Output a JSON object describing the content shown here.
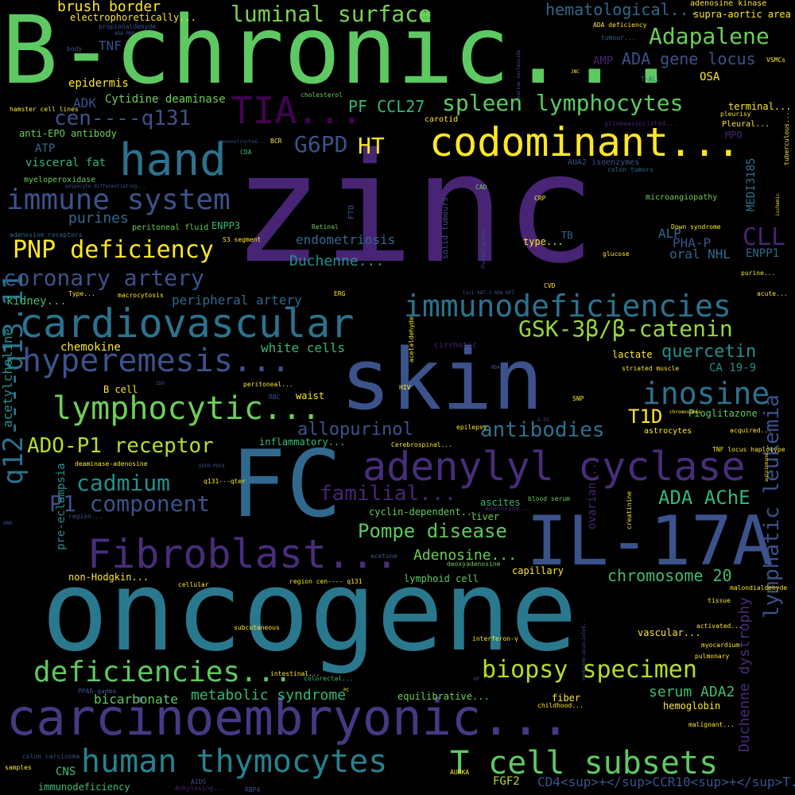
{
  "cloud": {
    "words": [
      {
        "text": "zinc",
        "color": "#482475"
      },
      {
        "text": "oncogene",
        "color": "#2a788e"
      },
      {
        "text": "B-chronic...",
        "color": "#5ec962"
      },
      {
        "text": "FC",
        "color": "#31688e"
      },
      {
        "text": "skin",
        "color": "#3b528b"
      },
      {
        "text": "IL-17A",
        "color": "#3b528b"
      },
      {
        "text": "carcinoembryonic...",
        "color": "#443a83"
      },
      {
        "text": "codominant...",
        "color": "#fde725"
      },
      {
        "text": "Fibroblast...",
        "color": "#472d7b"
      },
      {
        "text": "adenylyl cyclase",
        "color": "#472d7b"
      },
      {
        "text": "cardiovascular",
        "color": "#2c728e"
      },
      {
        "text": "q12----q13.11",
        "color": "#2c728e"
      },
      {
        "text": "TIA...",
        "color": "#440154"
      },
      {
        "text": "hand",
        "color": "#2c728e"
      },
      {
        "text": "immunodeficiencies",
        "color": "#2c728e"
      },
      {
        "text": "hyperemesis...",
        "color": "#3b528b"
      },
      {
        "text": "human thymocytes",
        "color": "#26828e"
      },
      {
        "text": "T cell subsets",
        "color": "#5ec962"
      },
      {
        "text": "lymphocytic...",
        "color": "#6ece58"
      },
      {
        "text": "deficiencies...",
        "color": "#5ec962"
      },
      {
        "text": "inosine",
        "color": "#2c728e"
      },
      {
        "text": "GSK-3β/β-catenin",
        "color": "#95d840"
      },
      {
        "text": "biopsy specimen",
        "color": "#b5de2b"
      },
      {
        "text": "immune system",
        "color": "#3b528b"
      },
      {
        "text": "luminal surface",
        "color": "#7ad151"
      },
      {
        "text": "spleen lymphocytes",
        "color": "#5ec962"
      },
      {
        "text": "PNP deficiency",
        "color": "#fde725"
      },
      {
        "text": "Adapalene",
        "color": "#6ece58"
      },
      {
        "text": "coronary artery",
        "color": "#3b528b"
      },
      {
        "text": "ADO-P1 receptor",
        "color": "#b5de2b"
      },
      {
        "text": "lymphatic leukemia",
        "color": "#3b528b"
      },
      {
        "text": "antibodies",
        "color": "#2c728e"
      },
      {
        "text": "cadmium",
        "color": "#21918c"
      },
      {
        "text": "P1 component",
        "color": "#3b528b"
      },
      {
        "text": "Pompe disease",
        "color": "#5ec962"
      },
      {
        "text": "chromosome 20",
        "color": "#3fbc73"
      },
      {
        "text": "Duchenne dystrophy",
        "color": "#472d7b"
      },
      {
        "text": "metabolic syndrome",
        "color": "#35b779"
      },
      {
        "text": "bicarbonate",
        "color": "#5ec962"
      },
      {
        "text": "familial...",
        "color": "#482475"
      },
      {
        "text": "allopurinol",
        "color": "#3b528b"
      },
      {
        "text": "quercetin",
        "color": "#21918c"
      },
      {
        "text": "ADA AChE",
        "color": "#35b779"
      },
      {
        "text": "serum ADA2",
        "color": "#3fbc73"
      },
      {
        "text": "T1D",
        "color": "#fde725"
      },
      {
        "text": "CLL",
        "color": "#482475"
      },
      {
        "text": "G6PD",
        "color": "#3b528b"
      },
      {
        "text": "HT",
        "color": "#fde725"
      },
      {
        "text": "PF CCL27",
        "color": "#35b779"
      },
      {
        "text": "cen----q131",
        "color": "#3b528b"
      },
      {
        "text": "ADA gene locus",
        "color": "#3b528b"
      },
      {
        "text": "hematological...",
        "color": "#31688e"
      },
      {
        "text": "Adenosine...",
        "color": "#6ece58"
      },
      {
        "text": "brush border",
        "color": "#fde725"
      },
      {
        "text": "CD4<sup>+</sup>CCR10<sup>+</sup>T...",
        "color": "#3b528b"
      },
      {
        "text": "endometriosis",
        "color": "#31688e"
      },
      {
        "text": "Duchenne...",
        "color": "#21918c"
      },
      {
        "text": "peripheral artery",
        "color": "#31688e"
      },
      {
        "text": "white cells",
        "color": "#35b779"
      },
      {
        "text": "purines",
        "color": "#31688e"
      },
      {
        "text": "ALP",
        "color": "#31688e"
      },
      {
        "text": "oral NHL",
        "color": "#31688e"
      },
      {
        "text": "PHA-P",
        "color": "#3b528b"
      },
      {
        "text": "MEDI3185",
        "color": "#2c728e"
      },
      {
        "text": "ENPP1",
        "color": "#31688e"
      },
      {
        "text": "CA 19-9",
        "color": "#21918c"
      },
      {
        "text": "Pioglitazone",
        "color": "#5ec962"
      },
      {
        "text": "acetylcholine",
        "color": "#21918c"
      },
      {
        "text": "pre-eclampsia",
        "color": "#21918c"
      },
      {
        "text": "ovarian...",
        "color": "#482475"
      },
      {
        "text": "Cytidine deaminase",
        "color": "#6ece58"
      },
      {
        "text": "visceral fat",
        "color": "#35b779"
      },
      {
        "text": "ATP",
        "color": "#31688e"
      },
      {
        "text": "kidney...",
        "color": "#3fbc73"
      },
      {
        "text": "chemokine",
        "color": "#fde725"
      },
      {
        "text": "epidermis",
        "color": "#fde725"
      },
      {
        "text": "TNF",
        "color": "#3b528b"
      },
      {
        "text": "ADK",
        "color": "#3b528b"
      },
      {
        "text": "AMP",
        "color": "#482475"
      },
      {
        "text": "CNS",
        "color": "#3fbc73"
      },
      {
        "text": "FGF2",
        "color": "#b5de2b"
      },
      {
        "text": "capillary",
        "color": "#fde725"
      },
      {
        "text": "liver",
        "color": "#6ece58"
      },
      {
        "text": "ascites",
        "color": "#35b779"
      },
      {
        "text": "lymphoid cell",
        "color": "#5ec962"
      },
      {
        "text": "cyclin-dependent...",
        "color": "#5ec962"
      },
      {
        "text": "inflammatory...",
        "color": "#3fbc73"
      },
      {
        "text": "equilibrative...",
        "color": "#6ece58"
      },
      {
        "text": "waist",
        "color": "#fde725"
      },
      {
        "text": "B cell",
        "color": "#fde725"
      },
      {
        "text": "lactate",
        "color": "#fde725"
      },
      {
        "text": "hemoglobin",
        "color": "#fde725"
      },
      {
        "text": "fiber",
        "color": "#fde725"
      },
      {
        "text": "astrocytes",
        "color": "#fde725"
      },
      {
        "text": "vascular...",
        "color": "#fde725"
      },
      {
        "text": "non-Hodgkin...",
        "color": "#fde725"
      },
      {
        "text": "terminal...",
        "color": "#fde725"
      },
      {
        "text": "supra-aortic area",
        "color": "#fde725"
      },
      {
        "text": "adenosine kinase",
        "color": "#fde725"
      },
      {
        "text": "electrophoretically...",
        "color": "#fde725"
      },
      {
        "text": "propionaldehyde",
        "color": "#3b528b"
      },
      {
        "text": "anti-EPO antibody",
        "color": "#6ece58"
      },
      {
        "text": "myeloperoxidase",
        "color": "#6ece58"
      },
      {
        "text": "hamster cell lines",
        "color": "#fde725"
      },
      {
        "text": "cholesterol",
        "color": "#6ece58"
      },
      {
        "text": "ADA deficiency",
        "color": "#fde725"
      },
      {
        "text": "tumour...",
        "color": "#31688e"
      },
      {
        "text": "OSA",
        "color": "#fde725"
      },
      {
        "text": "VSMCs",
        "color": "#fde725"
      },
      {
        "text": "T-ALL",
        "color": "#31688e"
      },
      {
        "text": "Pleural...",
        "color": "#fde725"
      },
      {
        "text": "pleurisy",
        "color": "#fde725"
      },
      {
        "text": "MPO",
        "color": "#482475"
      },
      {
        "text": "tuberculous...",
        "color": "#fde725"
      },
      {
        "text": "gliomaassociated...",
        "color": "#482475"
      },
      {
        "text": "AUA2 isoenzymes",
        "color": "#3b528b"
      },
      {
        "text": "colon tumors",
        "color": "#31688e"
      },
      {
        "text": "microangiopathy",
        "color": "#6ece58"
      },
      {
        "text": "Down syndrome",
        "color": "#fde725"
      },
      {
        "text": "glucose",
        "color": "#fde725"
      },
      {
        "text": "type...",
        "color": "#fde725"
      },
      {
        "text": "TB",
        "color": "#31688e"
      },
      {
        "text": "CRP",
        "color": "#fde725"
      },
      {
        "text": "CAD",
        "color": "#6ece58"
      },
      {
        "text": "carotid",
        "color": "#fde725"
      },
      {
        "text": "BCR",
        "color": "#fde725"
      },
      {
        "text": "CDA",
        "color": "#3fbc73"
      },
      {
        "text": "Retinal",
        "color": "#6ece58"
      },
      {
        "text": "FTO",
        "color": "#3b528b"
      },
      {
        "text": "solid tumours",
        "color": "#3b528b"
      },
      {
        "text": "peritoneal fluid",
        "color": "#6ece58"
      },
      {
        "text": "ENPP3",
        "color": "#35b779"
      },
      {
        "text": "S3 segment",
        "color": "#fde725"
      },
      {
        "text": "adenosine receptors",
        "color": "#31688e"
      },
      {
        "text": "purine...",
        "color": "#fde725"
      },
      {
        "text": "acute...",
        "color": "#fde725"
      },
      {
        "text": "CVD",
        "color": "#fde725"
      },
      {
        "text": "Type...",
        "color": "#fde725"
      },
      {
        "text": "macrocytosis",
        "color": "#fde725"
      },
      {
        "text": "ERG",
        "color": "#fde725"
      },
      {
        "text": "cirrhotic",
        "color": "#482475"
      },
      {
        "text": "acetaldehyde",
        "color": "#fde725"
      },
      {
        "text": "striated muscle",
        "color": "#fde725"
      },
      {
        "text": "HIV",
        "color": "#fde725"
      },
      {
        "text": "SNP",
        "color": "#fde725"
      },
      {
        "text": "acquired...",
        "color": "#fde725"
      },
      {
        "text": "chromosomes",
        "color": "#fde725"
      },
      {
        "text": "epilepsy",
        "color": "#fde725"
      },
      {
        "text": "Cerebrospinal...",
        "color": "#fde725"
      },
      {
        "text": "TNF locus haplotype",
        "color": "#fde725"
      },
      {
        "text": "creatinine",
        "color": "#fde725"
      },
      {
        "text": "blood serum",
        "color": "#6ece58"
      },
      {
        "text": "adenosine...",
        "color": "#482475"
      },
      {
        "text": "deoxyadenosine",
        "color": "#6ece58"
      },
      {
        "text": "acetone",
        "color": "#3b528b"
      },
      {
        "text": "region cen---- q131",
        "color": "#fde725"
      },
      {
        "text": "cellular",
        "color": "#fde725"
      },
      {
        "text": "tissue",
        "color": "#fde725"
      },
      {
        "text": "malondialdehyde",
        "color": "#fde725"
      },
      {
        "text": "myocardium",
        "color": "#fde725"
      },
      {
        "text": "pulmonary",
        "color": "#fde725"
      },
      {
        "text": "activated...",
        "color": "#fde725"
      },
      {
        "text": "malignant...",
        "color": "#fde725"
      },
      {
        "text": "interferon-γ",
        "color": "#fde725"
      },
      {
        "text": "subcutaneous",
        "color": "#fde725"
      },
      {
        "text": "intestinal...",
        "color": "#fde725"
      },
      {
        "text": "colorectal...",
        "color": "#3fbc73"
      },
      {
        "text": "PPAR-gamma",
        "color": "#3b528b"
      },
      {
        "text": "colon carcinoma",
        "color": "#3b528b"
      },
      {
        "text": "immunodeficiency",
        "color": "#3fbc73"
      },
      {
        "text": "AIDS",
        "color": "#3b528b"
      },
      {
        "text": "Ankylosing...",
        "color": "#482475"
      },
      {
        "text": "RBP4",
        "color": "#3b528b"
      },
      {
        "text": "AURKA",
        "color": "#fde725"
      },
      {
        "text": "childhood...",
        "color": "#fde725"
      },
      {
        "text": "samples",
        "color": "#fde725"
      },
      {
        "text": "ODFR-PUFA",
        "color": "#3b528b"
      },
      {
        "text": "q131---qter",
        "color": "#fde725"
      },
      {
        "text": "peritoneal...",
        "color": "#fde725"
      },
      {
        "text": "deaminase-adenosine",
        "color": "#fde725"
      },
      {
        "text": "region...",
        "color": "#3b528b"
      },
      {
        "text": "ARB",
        "color": "#3b528b"
      },
      {
        "text": "ADA PNP",
        "color": "#3b528b"
      },
      {
        "text": "body",
        "color": "#3b528b"
      },
      {
        "text": "RBC",
        "color": "#3b528b"
      },
      {
        "text": "MDA",
        "color": "#3b528b"
      },
      {
        "text": "IDO",
        "color": "#3b528b"
      },
      {
        "text": "PC",
        "color": "#fde725"
      },
      {
        "text": "HF",
        "color": "#3b528b"
      },
      {
        "text": "ischemic",
        "color": "#fde725"
      },
      {
        "text": "JNC",
        "color": "#fde725"
      },
      {
        "text": "purine nucleoside",
        "color": "#3b528b"
      },
      {
        "text": "Phorbol esters",
        "color": "#3b528b"
      },
      {
        "text": "loci AAT-1 ADA GPI",
        "color": "#3b528b"
      },
      {
        "text": "G-TG",
        "color": "#3b528b"
      },
      {
        "text": "membrane-associated...",
        "color": "#3b528b"
      },
      {
        "text": "autoimmune...",
        "color": "#fde725"
      },
      {
        "text": "reconstructed...",
        "color": "#3b528b"
      },
      {
        "text": "adipocyte-differentiating...",
        "color": "#3b528b"
      }
    ]
  }
}
